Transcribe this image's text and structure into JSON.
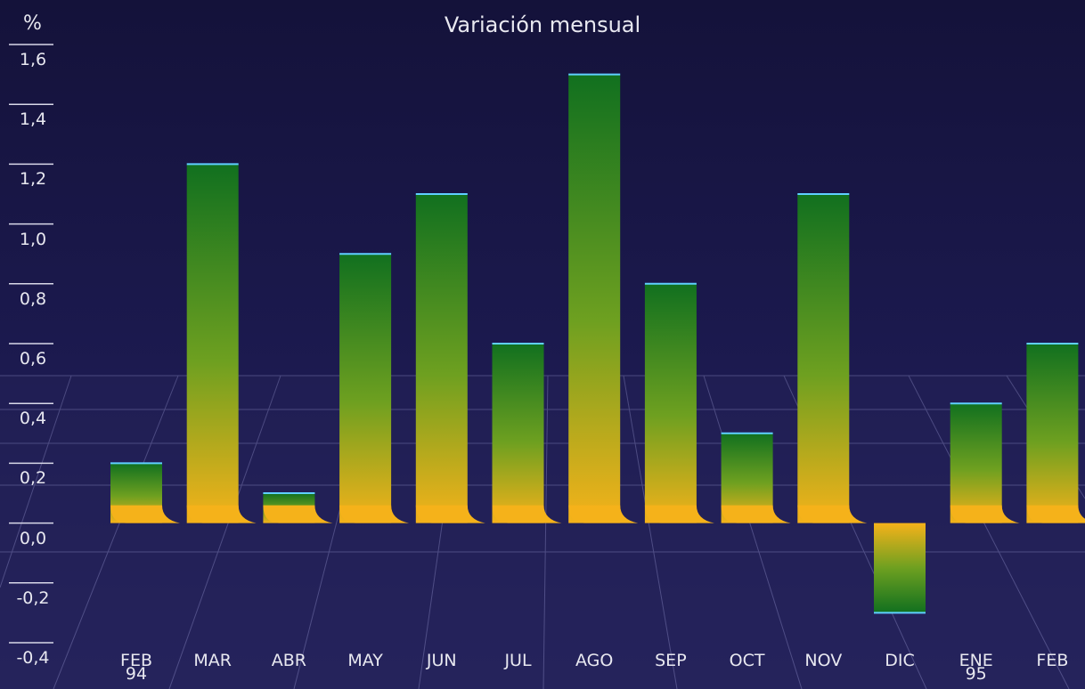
{
  "chart_data": {
    "type": "bar",
    "title": "Variación mensual",
    "y_label": "%",
    "categories": [
      "FEB\n94",
      "MAR",
      "ABR",
      "MAY",
      "JUN",
      "JUL",
      "AGO",
      "SEP",
      "OCT",
      "NOV",
      "DIC",
      "ENE\n95",
      "FEB"
    ],
    "values": [
      0.2,
      1.2,
      0.1,
      0.9,
      1.1,
      0.6,
      1.5,
      0.8,
      0.3,
      1.1,
      -0.3,
      0.4,
      0.6
    ],
    "color": "#1f7a1f",
    "ylim": [
      -0.4,
      1.6
    ],
    "yticks": [
      {
        "value": -0.4,
        "label": "-0,4"
      },
      {
        "value": -0.2,
        "label": "-0,2"
      },
      {
        "value": 0,
        "label": "0,0"
      },
      {
        "value": 0.2,
        "label": "0,2"
      },
      {
        "value": 0.4,
        "label": "0,4"
      },
      {
        "value": 0.6,
        "label": "0,6"
      },
      {
        "value": 0.8,
        "label": "0,8"
      },
      {
        "value": 1.0,
        "label": "1,0"
      },
      {
        "value": 1.2,
        "label": "1,2"
      },
      {
        "value": 1.4,
        "label": "1,4"
      },
      {
        "value": 1.6,
        "label": "1,6"
      }
    ],
    "grid": false
  }
}
